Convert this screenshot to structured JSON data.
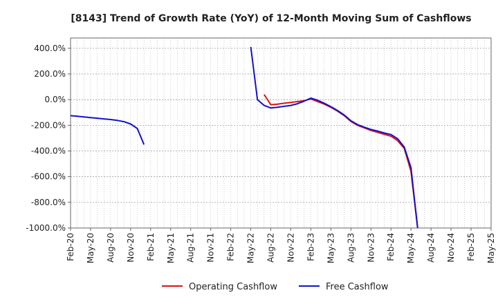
{
  "chart_data": {
    "type": "line",
    "title": "[8143]  Trend of Growth Rate (YoY) of 12-Month Moving Sum of Cashflows",
    "xlabel": "",
    "ylabel": "",
    "x_ticks": [
      "Feb-20",
      "May-20",
      "Aug-20",
      "Nov-20",
      "Feb-21",
      "May-21",
      "Aug-21",
      "Nov-21",
      "Feb-22",
      "May-22",
      "Aug-22",
      "Nov-22",
      "Feb-23",
      "May-23",
      "Aug-23",
      "Nov-23",
      "Feb-24",
      "May-24",
      "Aug-24",
      "Nov-24",
      "Feb-25",
      "May-25"
    ],
    "y_ticks": [
      "400.0%",
      "200.0%",
      "0.0%",
      "-200.0%",
      "-400.0%",
      "-600.0%",
      "-800.0%",
      "-1000.0%"
    ],
    "y_tick_values": [
      400,
      200,
      0,
      -200,
      -400,
      -600,
      -800,
      -1000
    ],
    "ylim": [
      -1000,
      480
    ],
    "grid": true,
    "legend_position": "bottom",
    "series": [
      {
        "name": "Operating Cashflow",
        "color": "#dd1111",
        "points": [
          [
            "Jul-22",
            40
          ],
          [
            "Aug-22",
            -40
          ],
          [
            "Sep-22",
            -35
          ],
          [
            "Oct-22",
            -28
          ],
          [
            "Nov-22",
            -22
          ],
          [
            "Dec-22",
            -15
          ],
          [
            "Jan-23",
            -8
          ],
          [
            "Feb-23",
            5
          ],
          [
            "Mar-23",
            -15
          ],
          [
            "Apr-23",
            -35
          ],
          [
            "May-23",
            -60
          ],
          [
            "Jun-23",
            -90
          ],
          [
            "Jul-23",
            -125
          ],
          [
            "Aug-23",
            -170
          ],
          [
            "Sep-23",
            -200
          ],
          [
            "Oct-23",
            -220
          ],
          [
            "Nov-23",
            -240
          ],
          [
            "Dec-23",
            -255
          ],
          [
            "Jan-24",
            -270
          ],
          [
            "Feb-24",
            -285
          ],
          [
            "Mar-24",
            -320
          ],
          [
            "Apr-24",
            -380
          ],
          [
            "May-24",
            -560
          ],
          [
            "Jun-24",
            -1000
          ]
        ]
      },
      {
        "name": "Free Cashflow",
        "color": "#1111cc",
        "segments": [
          [
            [
              "Feb-20",
              -125
            ],
            [
              "Mar-20",
              -130
            ],
            [
              "Apr-20",
              -135
            ],
            [
              "May-20",
              -140
            ],
            [
              "Jun-20",
              -145
            ],
            [
              "Jul-20",
              -150
            ],
            [
              "Aug-20",
              -155
            ],
            [
              "Sep-20",
              -162
            ],
            [
              "Oct-20",
              -172
            ],
            [
              "Nov-20",
              -190
            ],
            [
              "Dec-20",
              -225
            ],
            [
              "Jan-21",
              -350
            ]
          ],
          [
            [
              "May-22",
              410
            ],
            [
              "Jun-22",
              0
            ],
            [
              "Jul-22",
              -45
            ],
            [
              "Aug-22",
              -65
            ],
            [
              "Sep-22",
              -60
            ],
            [
              "Oct-22",
              -52
            ],
            [
              "Nov-22",
              -45
            ],
            [
              "Dec-22",
              -32
            ],
            [
              "Jan-23",
              -12
            ],
            [
              "Feb-23",
              12
            ],
            [
              "Mar-23",
              -5
            ],
            [
              "Apr-23",
              -28
            ],
            [
              "May-23",
              -55
            ],
            [
              "Jun-23",
              -85
            ],
            [
              "Jul-23",
              -120
            ],
            [
              "Aug-23",
              -165
            ],
            [
              "Sep-23",
              -195
            ],
            [
              "Oct-23",
              -215
            ],
            [
              "Nov-23",
              -232
            ],
            [
              "Dec-23",
              -245
            ],
            [
              "Jan-24",
              -260
            ],
            [
              "Feb-24",
              -272
            ],
            [
              "Mar-24",
              -305
            ],
            [
              "Apr-24",
              -370
            ],
            [
              "May-24",
              -530
            ],
            [
              "Jun-24",
              -1000
            ]
          ]
        ]
      }
    ]
  }
}
